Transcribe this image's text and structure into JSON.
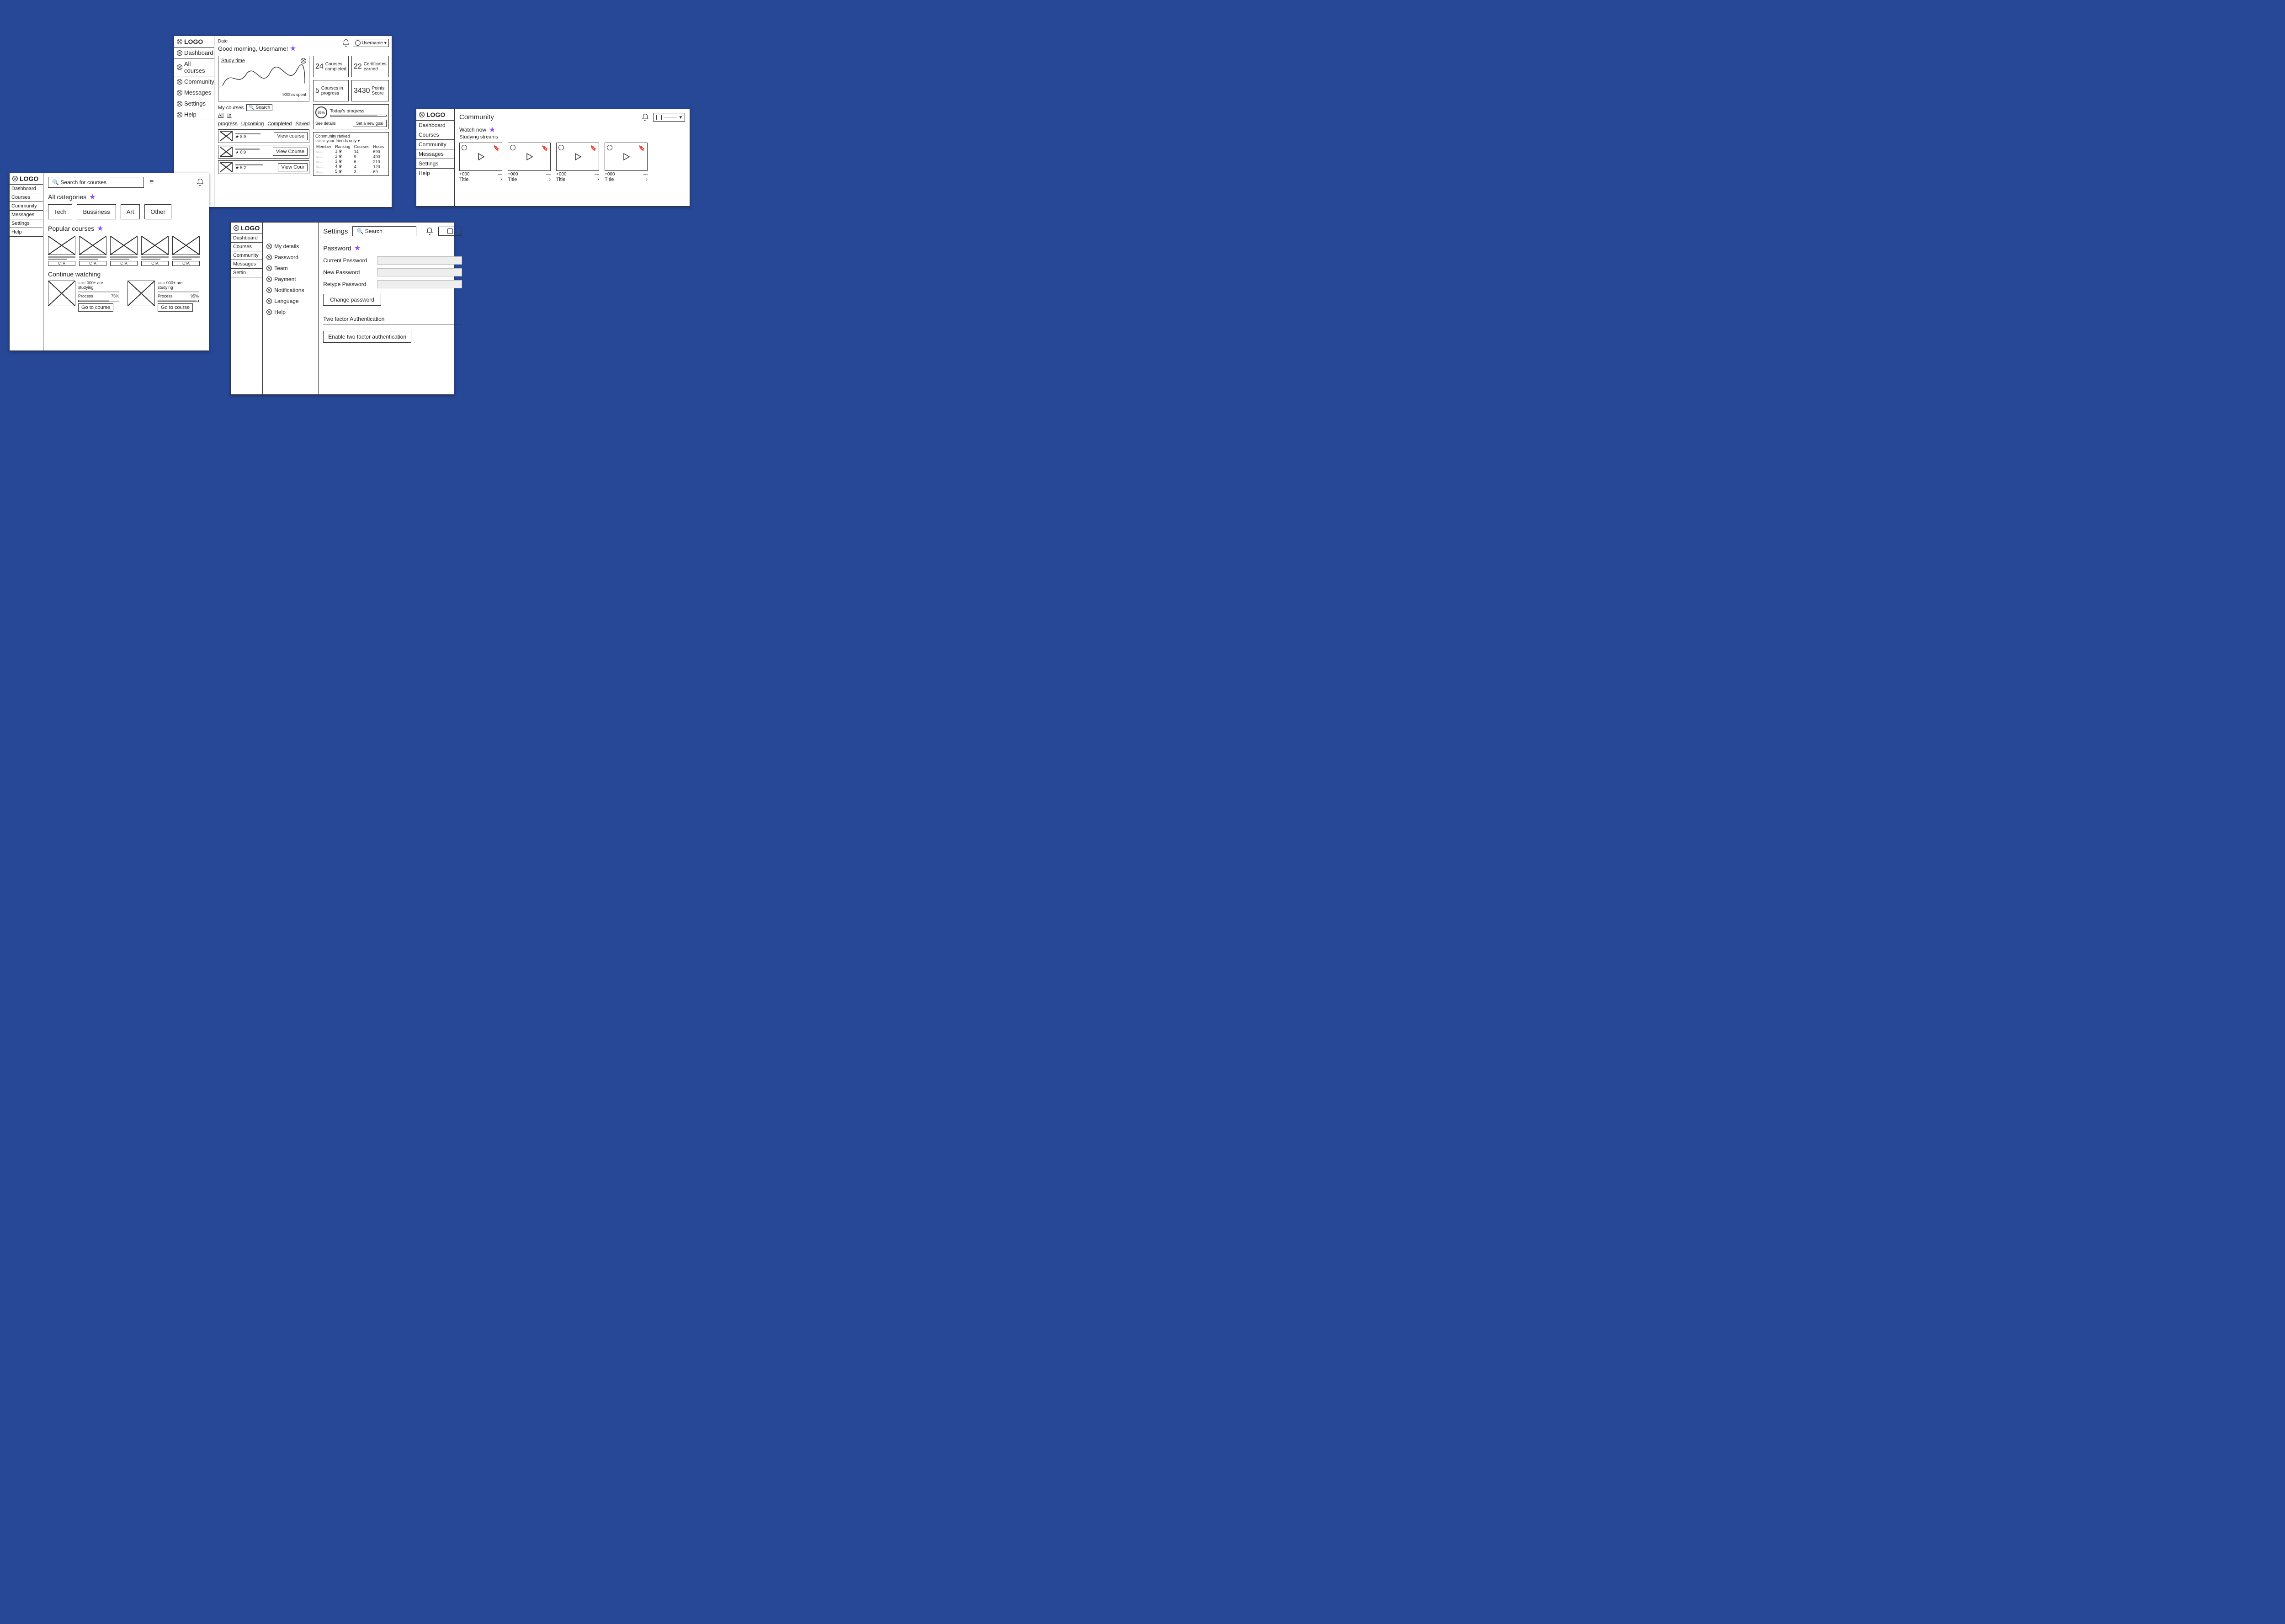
{
  "colors": {
    "bg": "#274797",
    "paper": "#ffffff",
    "ink": "#222222",
    "star": "#8a4dff"
  },
  "nav_full": {
    "logo": "LOGO",
    "items": [
      "Dashboard",
      "All courses",
      "Community",
      "Messages",
      "Settings",
      "Help"
    ]
  },
  "nav_short": {
    "logo": "LOGO",
    "items": [
      "Dashboard",
      "Courses",
      "Community",
      "Messages",
      "Settings",
      "Help"
    ]
  },
  "nav_settings_outer": {
    "logo": "LOGO",
    "items": [
      "Dashboard",
      "Courses",
      "Community",
      "Messages",
      "Settin"
    ]
  },
  "dashboard": {
    "date_label": "Date",
    "greeting": "Good morning, Username!",
    "user_label": "Username",
    "study_time": {
      "title": "Study time",
      "footer": "900hrs spent"
    },
    "stats": [
      {
        "num": "24",
        "label": "Courses completed"
      },
      {
        "num": "22",
        "label": "Certificates earned"
      },
      {
        "num": "5",
        "label": "Courses in progress"
      },
      {
        "num": "3430",
        "label": "Points Score"
      }
    ],
    "my_courses": {
      "title": "My courses",
      "search_placeholder": "Search",
      "tabs": [
        "All",
        "In progress",
        "Upcoming",
        "Completed",
        "Saved"
      ],
      "items": [
        {
          "rating": "★ 8.9",
          "cta": "View course"
        },
        {
          "rating": "★ 8.9",
          "cta": "View Course"
        },
        {
          "rating": "★ 5.2",
          "cta": "View Cour"
        }
      ]
    },
    "today": {
      "title": "Today's progress",
      "percent": "85%",
      "see": "See details",
      "set_goal": "Set a new goal"
    },
    "ranked": {
      "title": "Community ranked",
      "filter": "your friends only",
      "headers": [
        "Member",
        "Ranking",
        "Courses",
        "Hours"
      ],
      "rows": [
        [
          "○—",
          "1 ♛",
          "14",
          "690"
        ],
        [
          "○—",
          "2 ♛",
          "9",
          "490"
        ],
        [
          "○—",
          "3 ♛",
          "6",
          "210"
        ],
        [
          "○—",
          "4 ♛",
          "4",
          "120"
        ],
        [
          "○—",
          "5 ♛",
          "3",
          "69"
        ]
      ]
    }
  },
  "courses": {
    "search_placeholder": "Search for courses",
    "all_categories": "All categories",
    "categories": [
      "Tech",
      "Bussiness",
      "Art",
      "Other"
    ],
    "popular_title": "Popular courses",
    "popular_cta": "CTA",
    "popular_count": 5,
    "continue_title": "Continue watching",
    "continue": [
      {
        "studying": "000+ are studying",
        "process_label": "Process",
        "pct": 75,
        "pct_label": "75%",
        "cta": "Go to course"
      },
      {
        "studying": "000+ are studying",
        "process_label": "Process",
        "pct": 95,
        "pct_label": "95%",
        "cta": "Go to course"
      }
    ]
  },
  "community": {
    "title": "Community",
    "watch_now": "Watch now",
    "subtitle": "Studying streams",
    "streams": [
      {
        "viewers": "+000",
        "title": "Title"
      },
      {
        "viewers": "+000",
        "title": "Title"
      },
      {
        "viewers": "+000",
        "title": "Title"
      },
      {
        "viewers": "+000",
        "title": "Title"
      }
    ]
  },
  "settings": {
    "title": "Settings",
    "search_placeholder": "Search",
    "nav": [
      "My details",
      "Password",
      "Team",
      "Payment",
      "Notifications",
      "Language",
      "Help"
    ],
    "password": {
      "heading": "Password",
      "current": "Current Password",
      "new": "New Password",
      "retype": "Retype Password",
      "change_btn": "Change password",
      "tfa_title": "Two factor Authentication",
      "tfa_btn": "Enable two factor authentication"
    }
  }
}
